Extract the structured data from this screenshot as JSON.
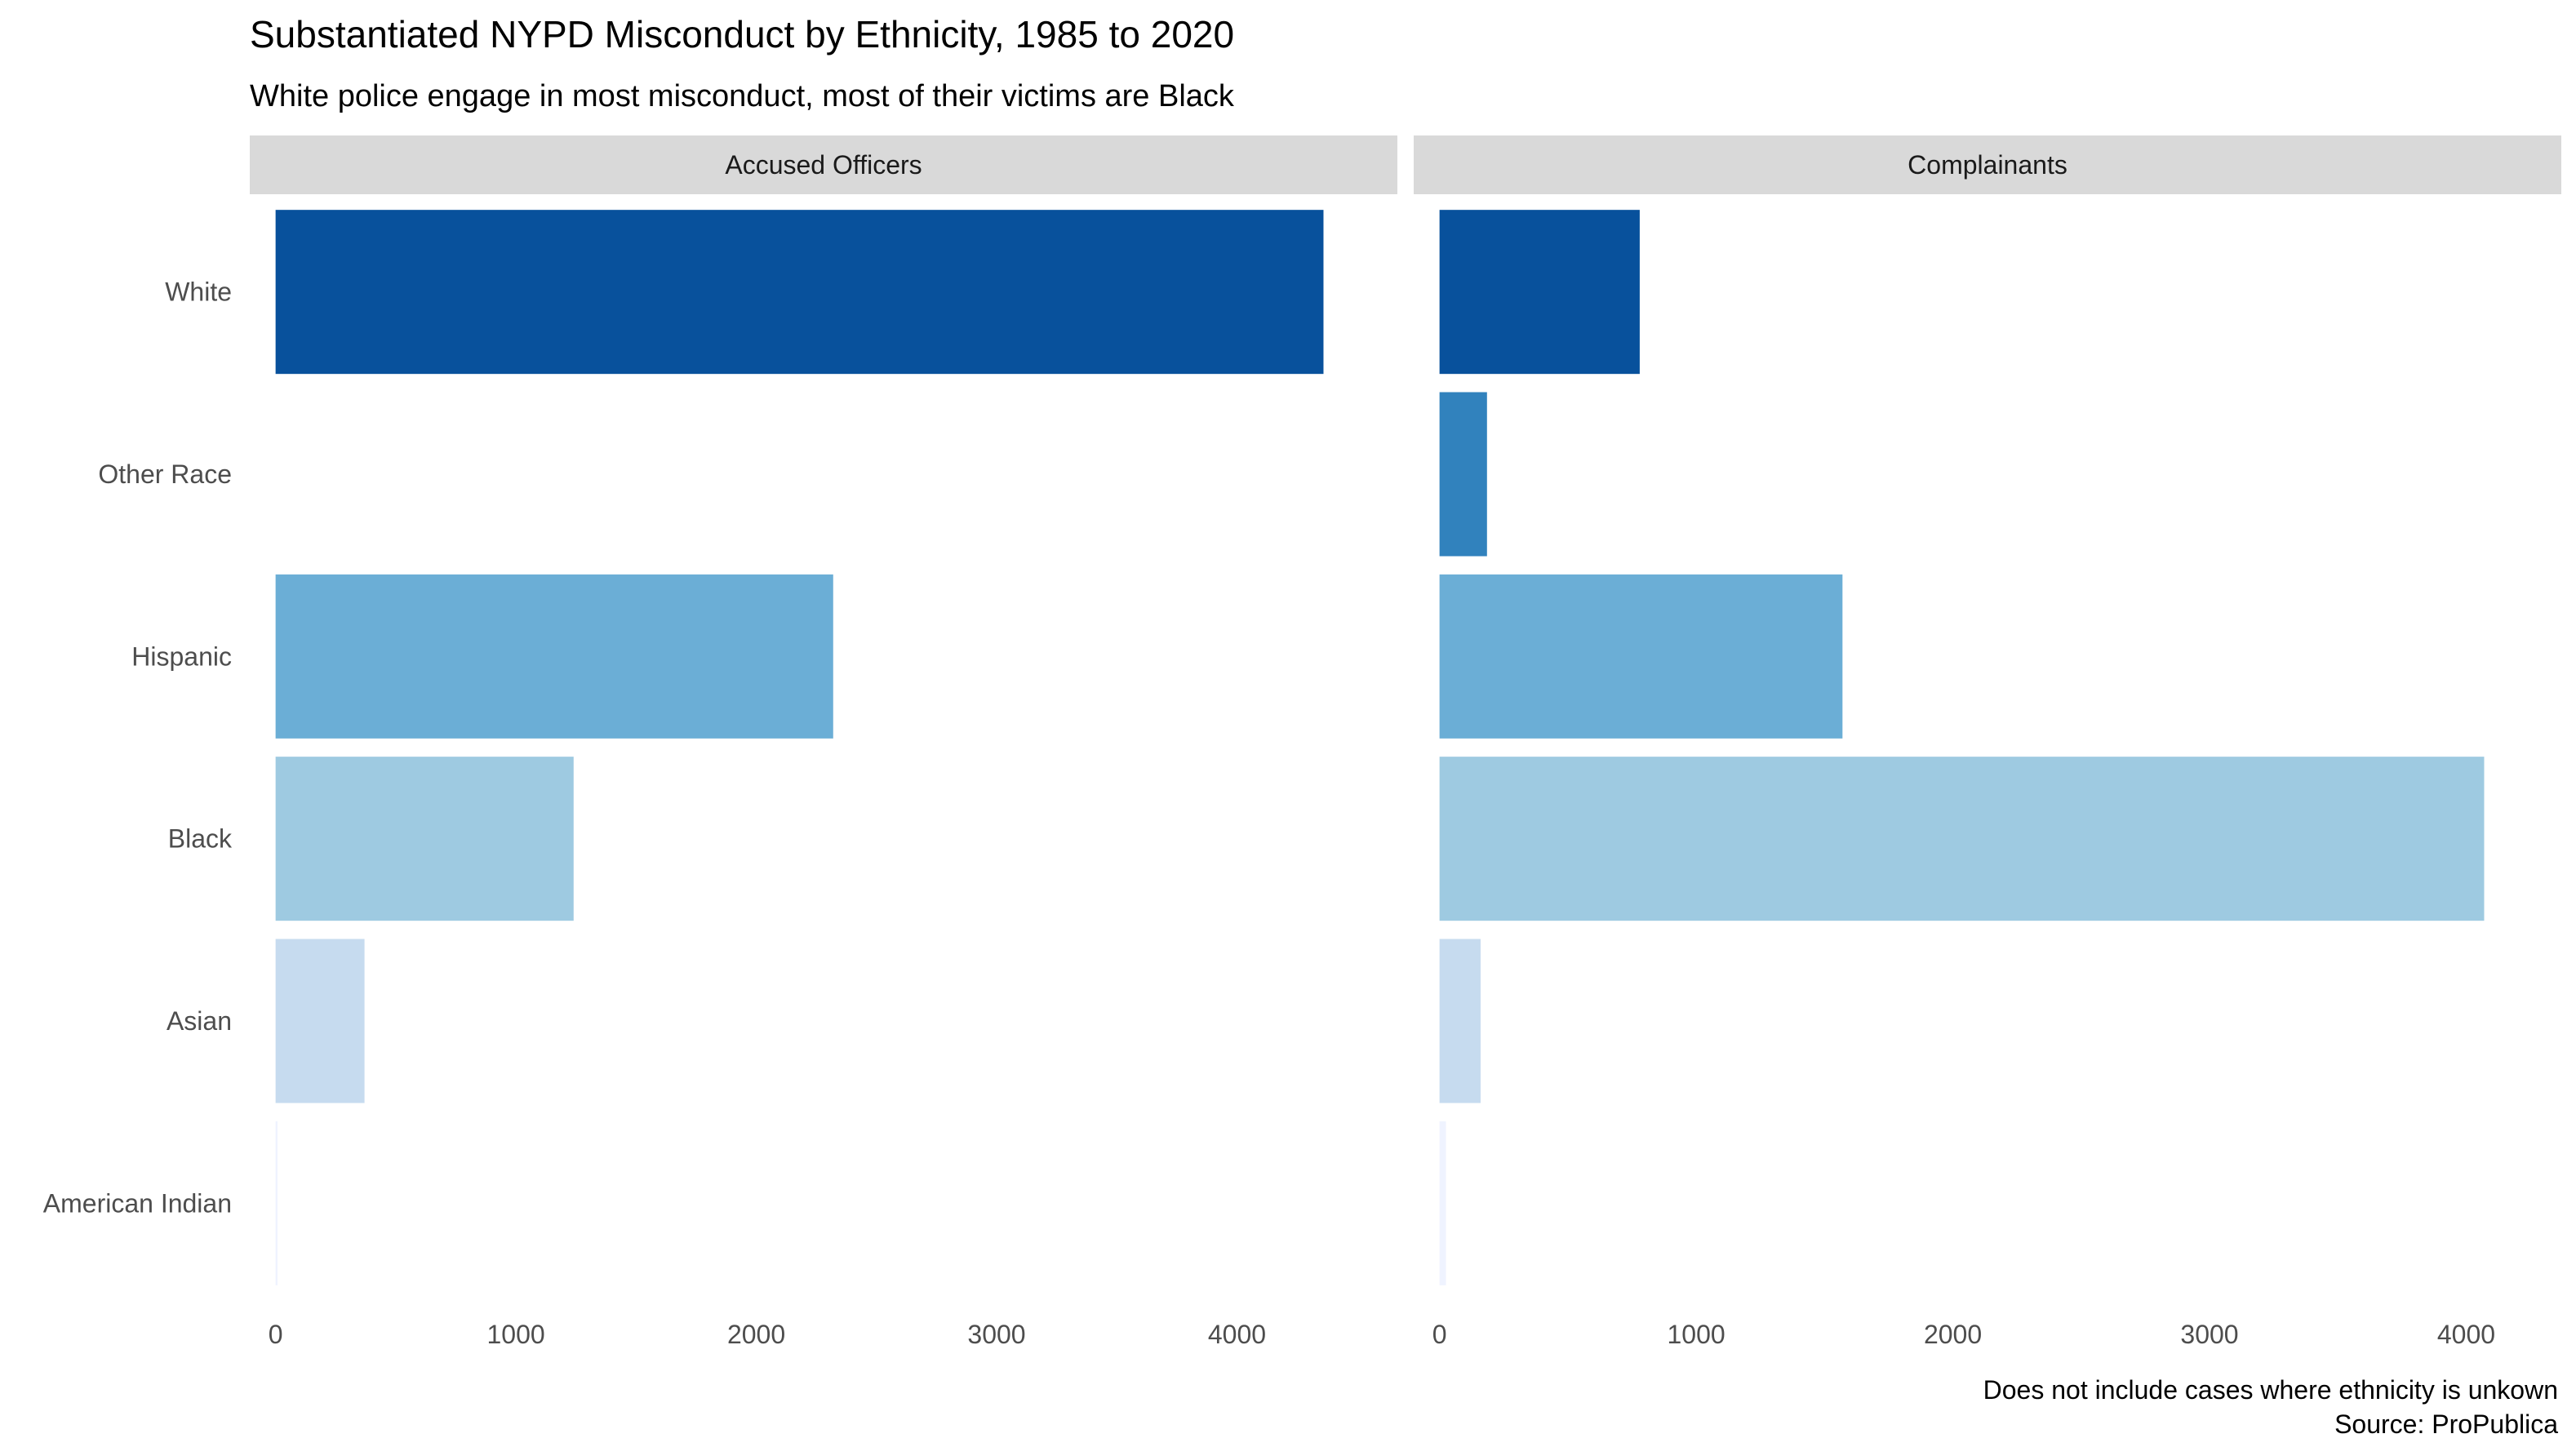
{
  "chart_data": {
    "type": "bar",
    "orientation": "horizontal",
    "title": "Substantiated NYPD Misconduct by Ethnicity, 1985 to 2020",
    "subtitle": "White police engage in most misconduct, most of their victims are Black",
    "caption": [
      "Does not include cases where ethnicity is unkown",
      "Source: ProPublica"
    ],
    "categories": [
      "White",
      "Other Race",
      "Hispanic",
      "Black",
      "Asian",
      "American Indian"
    ],
    "category_colors": [
      "#08519c",
      "#3182bd",
      "#6baed6",
      "#9ecae1",
      "#c6dbef",
      "#eff3ff"
    ],
    "grid": false,
    "panels": [
      {
        "name": "Accused Officers",
        "values": [
          4360,
          0,
          2320,
          1240,
          370,
          8
        ],
        "xlim": [
          0,
          4560
        ],
        "ticks": [
          0,
          1000,
          2000,
          3000,
          4000
        ],
        "tick_labels": [
          "0",
          "1000",
          "2000",
          "3000",
          "4000"
        ]
      },
      {
        "name": "Complainants",
        "values": [
          780,
          185,
          1570,
          4070,
          160,
          25
        ],
        "xlim": [
          0,
          4270
        ],
        "ticks": [
          0,
          1000,
          2000,
          3000,
          4000
        ],
        "tick_labels": [
          "0",
          "1000",
          "2000",
          "3000",
          "4000"
        ]
      }
    ]
  }
}
